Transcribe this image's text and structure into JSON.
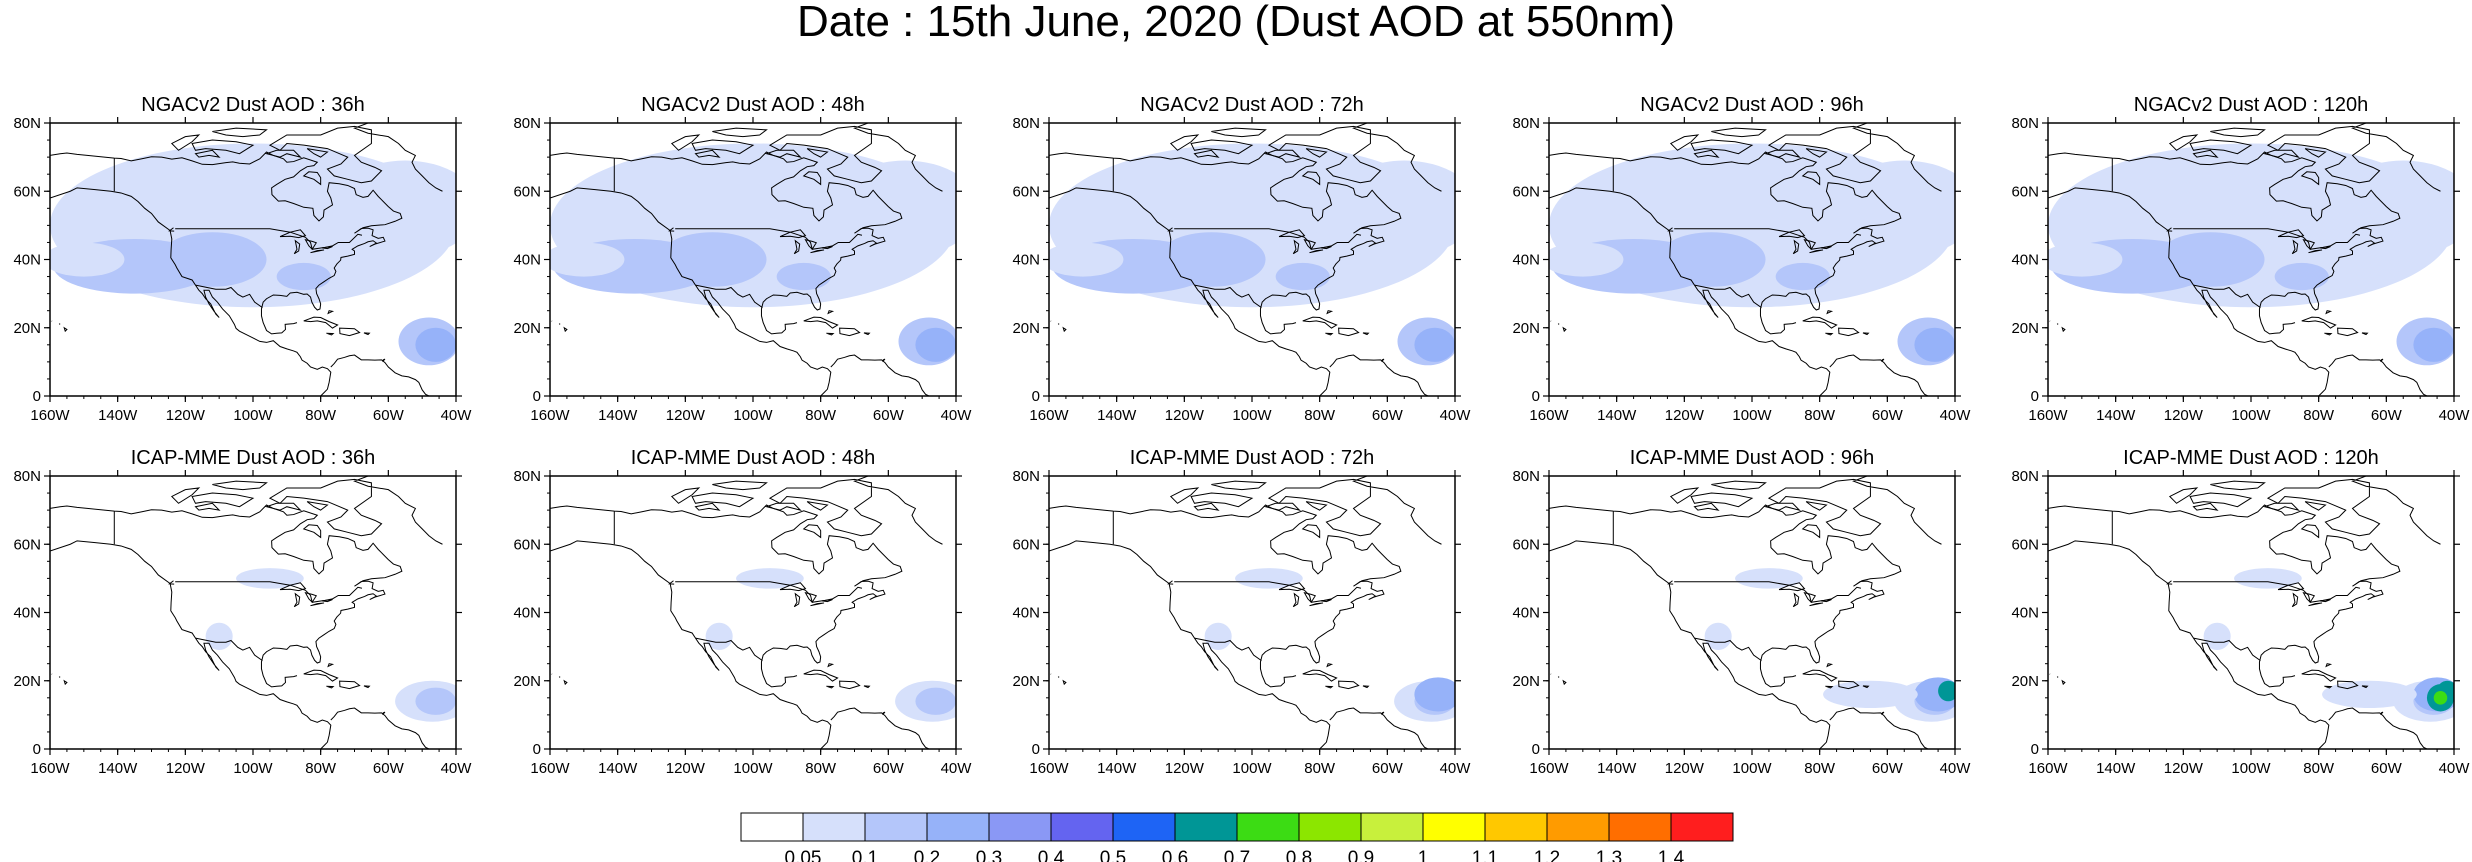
{
  "title": "Date : 15th June, 2020 (Dust AOD at 550nm)",
  "panels": [
    {
      "title": "NGACv2 Dust AOD : 36h"
    },
    {
      "title": "NGACv2 Dust AOD : 48h"
    },
    {
      "title": "NGACv2 Dust AOD : 72h"
    },
    {
      "title": "NGACv2 Dust AOD : 96h"
    },
    {
      "title": "NGACv2 Dust AOD : 120h"
    },
    {
      "title": "ICAP-MME Dust AOD : 36h"
    },
    {
      "title": "ICAP-MME Dust AOD : 48h"
    },
    {
      "title": "ICAP-MME Dust AOD : 72h"
    },
    {
      "title": "ICAP-MME Dust AOD : 96h"
    },
    {
      "title": "ICAP-MME Dust AOD : 120h"
    }
  ],
  "axes": {
    "x_ticks": [
      "160W",
      "140W",
      "120W",
      "100W",
      "80W",
      "60W",
      "40W"
    ],
    "y_ticks": [
      "0",
      "20N",
      "40N",
      "60N",
      "80N"
    ],
    "lon_range": [
      -160,
      -40
    ],
    "lat_range": [
      0,
      80
    ]
  },
  "colorbar": {
    "levels": [
      "0.05",
      "0.1",
      "0.2",
      "0.3",
      "0.4",
      "0.5",
      "0.6",
      "0.7",
      "0.8",
      "0.9",
      "1",
      "1.1",
      "1.2",
      "1.3",
      "1.4"
    ],
    "colors": [
      "#ffffff",
      "#d6e0fb",
      "#b4c6fa",
      "#96b2f9",
      "#8a98f5",
      "#6464f0",
      "#1e64f5",
      "#009696",
      "#3cdc14",
      "#8ce600",
      "#c8f03c",
      "#ffff00",
      "#ffc800",
      "#ff9b00",
      "#ff6e00",
      "#ff1e1e"
    ]
  }
}
